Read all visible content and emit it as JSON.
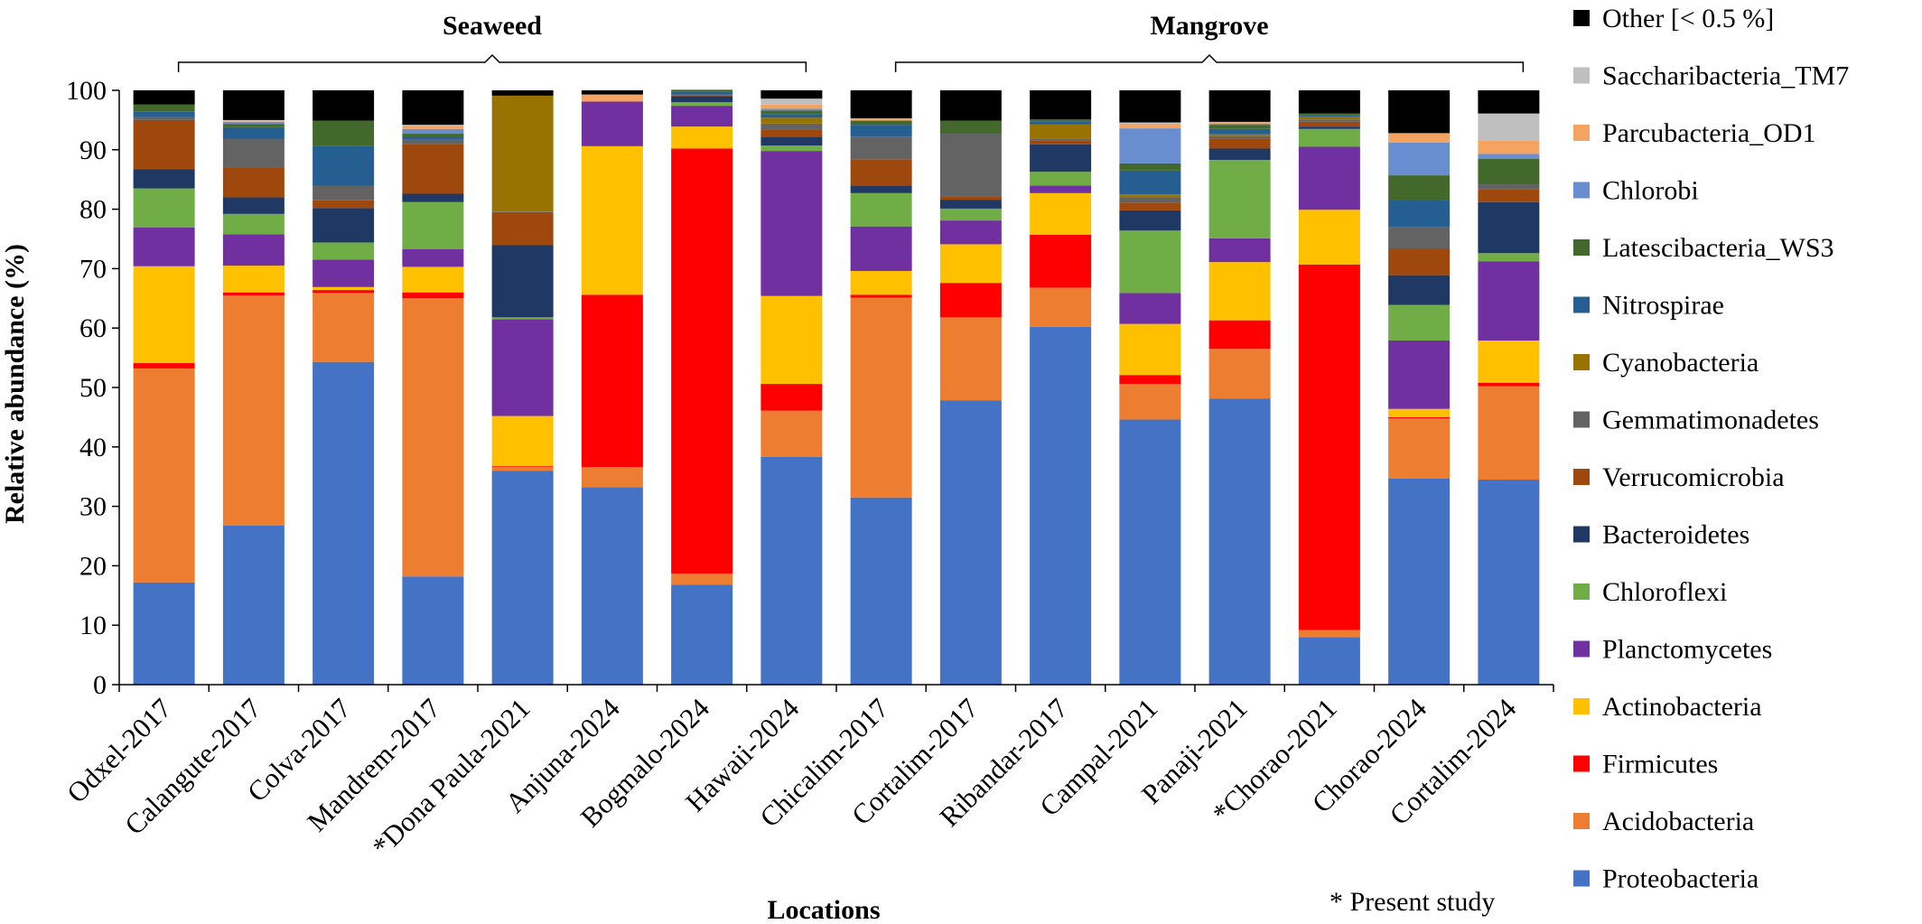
{
  "chart_data": {
    "type": "bar",
    "stacked": true,
    "xlabel": "Locations",
    "ylabel": "Relative abundance (%)",
    "ylim": [
      0,
      100
    ],
    "yticks": [
      0,
      10,
      20,
      30,
      40,
      50,
      60,
      70,
      80,
      90,
      100
    ],
    "categories": [
      "Odxel-2017",
      "Calangute-2017",
      "Colva-2017",
      "Mandrem-2017",
      "*Dona Paula-2021",
      "Anjuna-2024",
      "Bogmalo-2024",
      "Hawaii-2024",
      "Chicalim-2017",
      "Cortalim-2017",
      "Ribandar-2017",
      "Campal-2021",
      "Panaji-2021",
      "*Chorao-2021",
      "Chorao-2024",
      "Cortalim-2024"
    ],
    "groups": [
      {
        "label": "Seaweed",
        "from": 0,
        "to": 7
      },
      {
        "label": "Mangrove",
        "from": 8,
        "to": 15
      }
    ],
    "note": "* Present study",
    "legend_position": "right",
    "series": [
      {
        "name": "Proteobacteria",
        "color": "#4472C4",
        "values": [
          17.2,
          26.8,
          54.3,
          18.2,
          36.0,
          33.2,
          16.8,
          38.3,
          31.5,
          47.8,
          60.2,
          44.6,
          48.1,
          8.0,
          34.7,
          34.5
        ]
      },
      {
        "name": "Acidobacteria",
        "color": "#ED7D31",
        "values": [
          36.0,
          38.7,
          11.6,
          46.8,
          0.7,
          3.4,
          1.9,
          7.8,
          33.6,
          14.0,
          6.6,
          6.0,
          8.4,
          1.2,
          10.1,
          15.7
        ]
      },
      {
        "name": "Firmicutes",
        "color": "#FF0000",
        "values": [
          0.9,
          0.5,
          0.5,
          1.0,
          0.1,
          29.0,
          71.5,
          4.5,
          0.5,
          5.8,
          8.9,
          1.5,
          4.8,
          61.5,
          0.2,
          0.6
        ]
      },
      {
        "name": "Actinobacteria",
        "color": "#FFC000",
        "values": [
          16.3,
          4.5,
          0.5,
          4.3,
          8.4,
          25.0,
          3.7,
          14.8,
          4.0,
          6.5,
          7.0,
          8.6,
          9.8,
          9.2,
          1.4,
          7.1
        ]
      },
      {
        "name": "Planctomycetes",
        "color": "#7030A0",
        "values": [
          6.5,
          5.3,
          4.6,
          3.0,
          16.3,
          7.5,
          3.5,
          24.4,
          7.5,
          4.0,
          1.3,
          5.2,
          4.0,
          10.6,
          11.5,
          13.3
        ]
      },
      {
        "name": "Chloroflexi",
        "color": "#70AD47",
        "values": [
          6.6,
          3.4,
          2.9,
          7.9,
          0.3,
          0.0,
          0.6,
          0.9,
          5.6,
          2.0,
          2.3,
          10.5,
          13.2,
          3.0,
          6.0,
          1.4
        ]
      },
      {
        "name": "Bacteroidetes",
        "color": "#203864",
        "values": [
          3.2,
          2.8,
          5.8,
          1.4,
          12.2,
          0.0,
          1.0,
          1.5,
          1.3,
          1.5,
          4.6,
          3.4,
          1.9,
          0.4,
          5.0,
          8.6
        ]
      },
      {
        "name": "Verrucomicrobia",
        "color": "#9E480E",
        "values": [
          8.3,
          5.0,
          1.3,
          8.3,
          5.5,
          0.0,
          0.2,
          1.2,
          4.4,
          0.6,
          0.6,
          1.3,
          1.6,
          0.8,
          4.5,
          2.1
        ]
      },
      {
        "name": "Gemmatimonadetes",
        "color": "#636363",
        "values": [
          0.5,
          4.8,
          2.4,
          0.8,
          0.1,
          0.0,
          0.1,
          1.0,
          3.8,
          10.5,
          0.3,
          0.9,
          0.5,
          0.4,
          3.6,
          0.9
        ]
      },
      {
        "name": "Cyanobacteria",
        "color": "#997300",
        "values": [
          0.0,
          0.0,
          0.0,
          0.0,
          19.5,
          0.0,
          0.0,
          1.0,
          0.0,
          0.0,
          2.5,
          0.5,
          0.3,
          0.5,
          0.0,
          0.0
        ]
      },
      {
        "name": "Nitrospirae",
        "color": "#255E91",
        "values": [
          0.9,
          2.0,
          6.7,
          0.4,
          0.0,
          0.0,
          0.5,
          0.6,
          2.0,
          0.0,
          0.5,
          4.0,
          0.9,
          0.2,
          4.6,
          0.0
        ]
      },
      {
        "name": "Latescibacteria_WS3",
        "color": "#43682B",
        "values": [
          1.2,
          0.5,
          4.3,
          0.6,
          0.0,
          0.0,
          0.3,
          0.6,
          0.7,
          2.2,
          0.3,
          1.2,
          0.7,
          0.3,
          4.1,
          4.3
        ]
      },
      {
        "name": "Chlorobi",
        "color": "#698ED0",
        "values": [
          0.0,
          0.4,
          0.0,
          0.8,
          0.0,
          0.0,
          0.0,
          0.3,
          0.0,
          0.0,
          0.0,
          5.9,
          0.2,
          0.0,
          5.5,
          0.8
        ]
      },
      {
        "name": "Parcubacteria_OD1",
        "color": "#F4A460",
        "values": [
          0.0,
          0.1,
          0.0,
          0.5,
          0.0,
          1.2,
          0.0,
          0.7,
          0.4,
          0.0,
          0.0,
          0.8,
          0.3,
          0.0,
          1.6,
          2.2
        ]
      },
      {
        "name": "Saccharibacteria_TM7",
        "color": "#BFBFBF",
        "values": [
          0.0,
          0.2,
          0.0,
          0.2,
          0.0,
          0.0,
          0.0,
          1.0,
          0.0,
          0.0,
          0.0,
          0.2,
          0.0,
          0.0,
          0.0,
          4.6
        ]
      },
      {
        "name": "Other [< 0.5 %]",
        "color": "#000000",
        "values": [
          2.4,
          5.0,
          5.1,
          5.8,
          0.9,
          0.7,
          0.0,
          1.4,
          4.7,
          5.1,
          4.9,
          5.4,
          5.3,
          3.9,
          7.2,
          3.9
        ]
      }
    ]
  }
}
